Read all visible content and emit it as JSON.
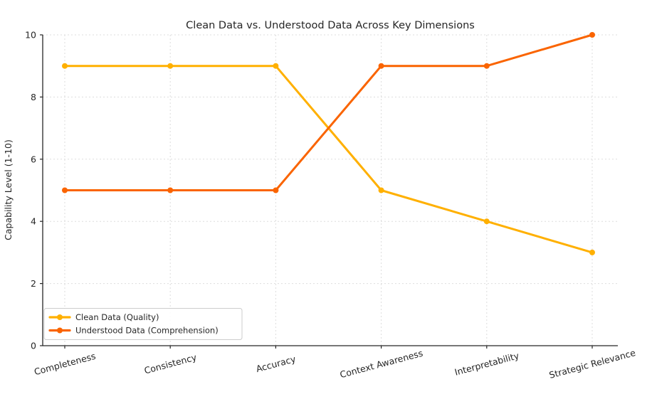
{
  "chart_data": {
    "type": "line",
    "title": "Clean Data vs. Understood Data Across Key Dimensions",
    "xlabel": "",
    "ylabel": "Capability Level (1-10)",
    "categories": [
      "Completeness",
      "Consistency",
      "Accuracy",
      "Context Awareness",
      "Interpretability",
      "Strategic Relevance"
    ],
    "series": [
      {
        "name": "Clean Data (Quality)",
        "color": "#FFB000",
        "values": [
          9,
          9,
          9,
          5,
          4,
          3
        ]
      },
      {
        "name": "Understood Data (Comprehension)",
        "color": "#FA6400",
        "values": [
          5,
          5,
          5,
          9,
          9,
          10
        ]
      }
    ],
    "ylim": [
      0,
      10
    ],
    "yticks": [
      0,
      2,
      4,
      6,
      8,
      10
    ],
    "grid": true,
    "grid_style": "dotted",
    "legend_position": "lower left",
    "x_tick_rotation_deg": 15
  },
  "style": {
    "background": "#FFFFFF",
    "text_color": "#262626",
    "spine_color": "#262626",
    "grid_color": "#DDDDDD",
    "legend_border_color": "#CCCCCC",
    "legend_background": "#FFFFFF"
  }
}
